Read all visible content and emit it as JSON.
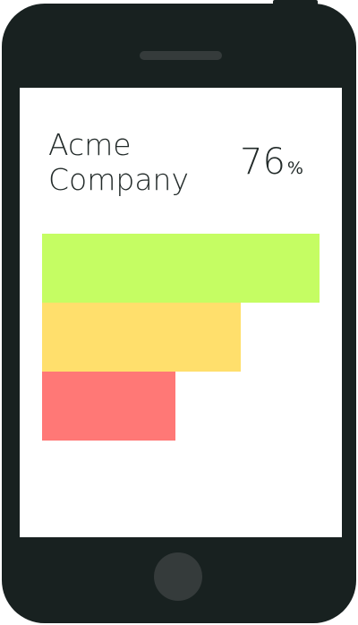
{
  "card": {
    "company_name": "Acme\nCompany",
    "percent_value": "76",
    "percent_unit": "%"
  },
  "bars": [
    {
      "level": 1.0,
      "color": "#c5fd63"
    },
    {
      "level": 0.715,
      "color": "#ffdf6c"
    },
    {
      "level": 0.48,
      "color": "#ff7876"
    }
  ],
  "colors": {
    "phone_body": "#182120",
    "screen": "#ffffff",
    "text": "#222a29"
  }
}
